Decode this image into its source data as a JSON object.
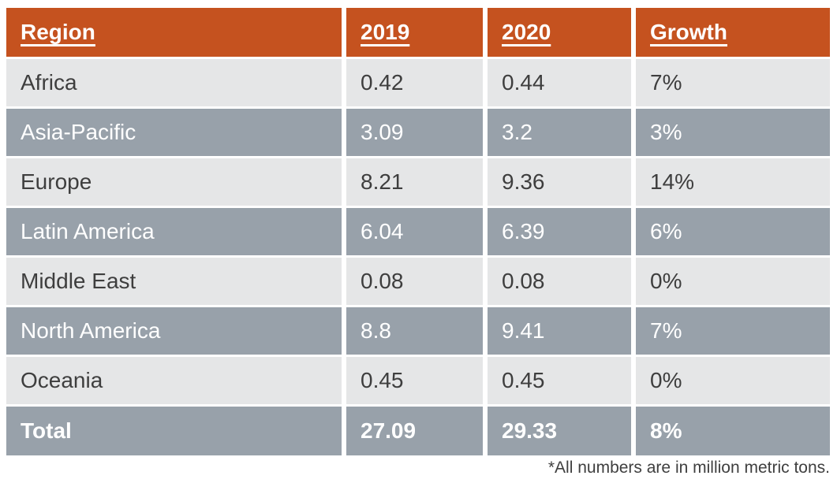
{
  "colors": {
    "header_bg": "#C5521F",
    "row_light_bg": "#E5E6E7",
    "row_dark_bg": "#98A1AA",
    "header_text": "#FFFFFF",
    "dark_text": "#3E3E3E",
    "light_text": "#FFFFFF",
    "gutter": "#FFFFFF"
  },
  "table": {
    "headers": [
      "Region",
      "2019",
      "2020",
      "Growth"
    ],
    "rows": [
      {
        "region": "Africa",
        "y2019": "0.42",
        "y2020": "0.44",
        "growth": "7%"
      },
      {
        "region": "Asia-Pacific",
        "y2019": "3.09",
        "y2020": "3.2",
        "growth": "3%"
      },
      {
        "region": "Europe",
        "y2019": "8.21",
        "y2020": "9.36",
        "growth": "14%"
      },
      {
        "region": "Latin America",
        "y2019": "6.04",
        "y2020": "6.39",
        "growth": "6%"
      },
      {
        "region": "Middle East",
        "y2019": "0.08",
        "y2020": "0.08",
        "growth": "0%"
      },
      {
        "region": "North America",
        "y2019": "8.8",
        "y2020": "9.41",
        "growth": "7%"
      },
      {
        "region": "Oceania",
        "y2019": "0.45",
        "y2020": "0.45",
        "growth": "0%"
      }
    ],
    "total": {
      "region": "Total",
      "y2019": "27.09",
      "y2020": "29.33",
      "growth": "8%"
    }
  },
  "footnote": "*All numbers are in million metric tons.",
  "chart_data": {
    "type": "table",
    "columns": [
      "Region",
      "2019",
      "2020",
      "Growth"
    ],
    "rows": [
      [
        "Africa",
        0.42,
        0.44,
        "7%"
      ],
      [
        "Asia-Pacific",
        3.09,
        3.2,
        "3%"
      ],
      [
        "Europe",
        8.21,
        9.36,
        "14%"
      ],
      [
        "Latin America",
        6.04,
        6.39,
        "6%"
      ],
      [
        "Middle East",
        0.08,
        0.08,
        "0%"
      ],
      [
        "North America",
        8.8,
        9.41,
        "7%"
      ],
      [
        "Oceania",
        0.45,
        0.45,
        "0%"
      ],
      [
        "Total",
        27.09,
        29.33,
        "8%"
      ]
    ],
    "units": "million metric tons",
    "footnote": "*All numbers are in million metric tons."
  }
}
